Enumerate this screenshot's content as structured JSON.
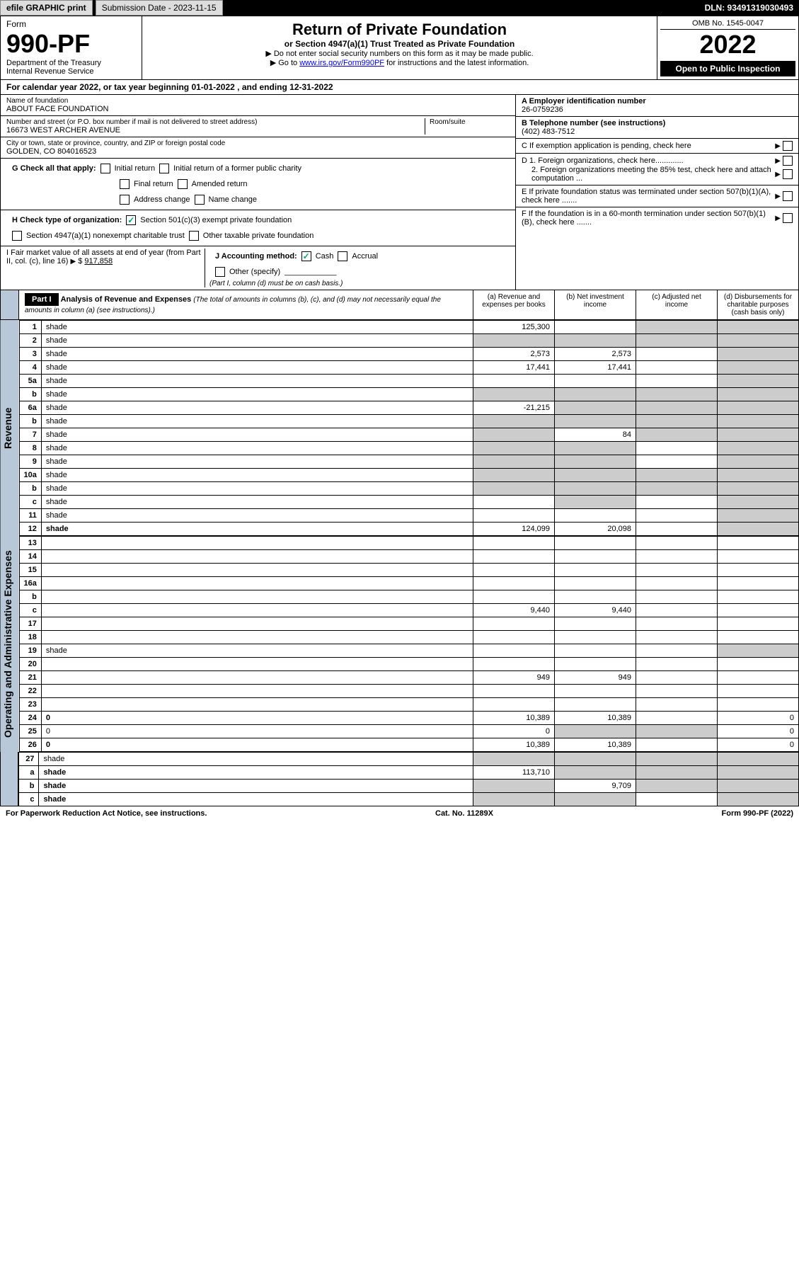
{
  "topbar": {
    "efile": "efile GRAPHIC print",
    "submission": "Submission Date - 2023-11-15",
    "dln": "DLN: 93491319030493"
  },
  "header": {
    "form_label": "Form",
    "form_num": "990-PF",
    "dept": "Department of the Treasury",
    "irs": "Internal Revenue Service",
    "title": "Return of Private Foundation",
    "subtitle": "or Section 4947(a)(1) Trust Treated as Private Foundation",
    "instr1": "▶ Do not enter social security numbers on this form as it may be made public.",
    "instr2_pre": "▶ Go to ",
    "instr2_link": "www.irs.gov/Form990PF",
    "instr2_post": " for instructions and the latest information.",
    "omb": "OMB No. 1545-0047",
    "year": "2022",
    "open": "Open to Public Inspection"
  },
  "cal_year": "For calendar year 2022, or tax year beginning 01-01-2022                           , and ending 12-31-2022",
  "info": {
    "name_lbl": "Name of foundation",
    "name": "ABOUT FACE FOUNDATION",
    "addr_lbl": "Number and street (or P.O. box number if mail is not delivered to street address)",
    "addr": "16673 WEST ARCHER AVENUE",
    "room_lbl": "Room/suite",
    "city_lbl": "City or town, state or province, country, and ZIP or foreign postal code",
    "city": "GOLDEN, CO  804016523",
    "ein_lbl": "A Employer identification number",
    "ein": "26-0759236",
    "tel_lbl": "B Telephone number (see instructions)",
    "tel": "(402) 483-7512",
    "c_lbl": "C If exemption application is pending, check here",
    "d1_lbl": "D 1. Foreign organizations, check here.............",
    "d2_lbl": "2. Foreign organizations meeting the 85% test, check here and attach computation ...",
    "e_lbl": "E  If private foundation status was terminated under section 507(b)(1)(A), check here .......",
    "f_lbl": "F  If the foundation is in a 60-month termination under section 507(b)(1)(B), check here .......",
    "g_lbl": "G Check all that apply:",
    "g_initial": "Initial return",
    "g_initial_former": "Initial return of a former public charity",
    "g_final": "Final return",
    "g_amended": "Amended return",
    "g_addr_chg": "Address change",
    "g_name_chg": "Name change",
    "h_lbl": "H Check type of organization:",
    "h_501c3": "Section 501(c)(3) exempt private foundation",
    "h_4947": "Section 4947(a)(1) nonexempt charitable trust",
    "h_other": "Other taxable private foundation",
    "i_lbl": "I Fair market value of all assets at end of year (from Part II, col. (c), line 16)",
    "i_val": "917,858",
    "j_lbl": "J Accounting method:",
    "j_cash": "Cash",
    "j_accrual": "Accrual",
    "j_other": "Other (specify)",
    "j_note": "(Part I, column (d) must be on cash basis.)"
  },
  "part1": {
    "label": "Part I",
    "title": "Analysis of Revenue and Expenses",
    "note": "(The total of amounts in columns (b), (c), and (d) may not necessarily equal the amounts in column (a) (see instructions).)",
    "col_a": "(a)   Revenue and expenses per books",
    "col_b": "(b)   Net investment income",
    "col_c": "(c)   Adjusted net income",
    "col_d": "(d)   Disbursements for charitable purposes (cash basis only)"
  },
  "revenue_label": "Revenue",
  "expense_label": "Operating and Administrative Expenses",
  "lines": [
    {
      "n": "1",
      "d": "shade",
      "a": "125,300",
      "b": "",
      "c": "shade"
    },
    {
      "n": "2",
      "d": "shade",
      "a": "shade",
      "b": "shade",
      "c": "shade"
    },
    {
      "n": "3",
      "d": "shade",
      "a": "2,573",
      "b": "2,573",
      "c": ""
    },
    {
      "n": "4",
      "d": "shade",
      "a": "17,441",
      "b": "17,441",
      "c": ""
    },
    {
      "n": "5a",
      "d": "shade",
      "a": "",
      "b": "",
      "c": ""
    },
    {
      "n": "b",
      "d": "shade",
      "a": "shade",
      "b": "shade",
      "c": "shade"
    },
    {
      "n": "6a",
      "d": "shade",
      "a": "-21,215",
      "b": "shade",
      "c": "shade"
    },
    {
      "n": "b",
      "d": "shade",
      "a": "shade",
      "b": "shade",
      "c": "shade"
    },
    {
      "n": "7",
      "d": "shade",
      "a": "shade",
      "b": "84",
      "c": "shade"
    },
    {
      "n": "8",
      "d": "shade",
      "a": "shade",
      "b": "shade",
      "c": ""
    },
    {
      "n": "9",
      "d": "shade",
      "a": "shade",
      "b": "shade",
      "c": ""
    },
    {
      "n": "10a",
      "d": "shade",
      "a": "shade",
      "b": "shade",
      "c": "shade"
    },
    {
      "n": "b",
      "d": "shade",
      "a": "shade",
      "b": "shade",
      "c": "shade"
    },
    {
      "n": "c",
      "d": "shade",
      "a": "",
      "b": "shade",
      "c": ""
    },
    {
      "n": "11",
      "d": "shade",
      "a": "",
      "b": "",
      "c": ""
    },
    {
      "n": "12",
      "d": "shade",
      "a": "124,099",
      "b": "20,098",
      "c": "",
      "bold": true
    }
  ],
  "exp_lines": [
    {
      "n": "13",
      "d": "",
      "a": "",
      "b": "",
      "c": ""
    },
    {
      "n": "14",
      "d": "",
      "a": "",
      "b": "",
      "c": ""
    },
    {
      "n": "15",
      "d": "",
      "a": "",
      "b": "",
      "c": ""
    },
    {
      "n": "16a",
      "d": "",
      "a": "",
      "b": "",
      "c": ""
    },
    {
      "n": "b",
      "d": "",
      "a": "",
      "b": "",
      "c": ""
    },
    {
      "n": "c",
      "d": "",
      "a": "9,440",
      "b": "9,440",
      "c": ""
    },
    {
      "n": "17",
      "d": "",
      "a": "",
      "b": "",
      "c": ""
    },
    {
      "n": "18",
      "d": "",
      "a": "",
      "b": "",
      "c": ""
    },
    {
      "n": "19",
      "d": "shade",
      "a": "",
      "b": "",
      "c": ""
    },
    {
      "n": "20",
      "d": "",
      "a": "",
      "b": "",
      "c": ""
    },
    {
      "n": "21",
      "d": "",
      "a": "949",
      "b": "949",
      "c": ""
    },
    {
      "n": "22",
      "d": "",
      "a": "",
      "b": "",
      "c": ""
    },
    {
      "n": "23",
      "d": "",
      "a": "",
      "b": "",
      "c": ""
    },
    {
      "n": "24",
      "d": "0",
      "a": "10,389",
      "b": "10,389",
      "c": "",
      "bold": true
    },
    {
      "n": "25",
      "d": "0",
      "a": "0",
      "b": "shade",
      "c": "shade"
    },
    {
      "n": "26",
      "d": "0",
      "a": "10,389",
      "b": "10,389",
      "c": "",
      "bold": true
    }
  ],
  "net_lines": [
    {
      "n": "27",
      "d": "shade",
      "a": "shade",
      "b": "shade",
      "c": "shade"
    },
    {
      "n": "a",
      "d": "shade",
      "a": "113,710",
      "b": "shade",
      "c": "shade",
      "bold": true
    },
    {
      "n": "b",
      "d": "shade",
      "a": "shade",
      "b": "9,709",
      "c": "shade",
      "bold": true
    },
    {
      "n": "c",
      "d": "shade",
      "a": "shade",
      "b": "shade",
      "c": "",
      "bold": true
    }
  ],
  "footer": {
    "left": "For Paperwork Reduction Act Notice, see instructions.",
    "mid": "Cat. No. 11289X",
    "right": "Form 990-PF (2022)"
  }
}
